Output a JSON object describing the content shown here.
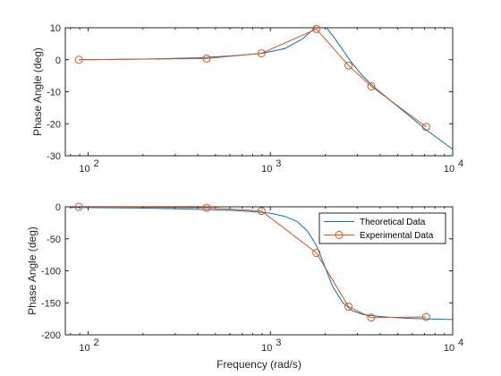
{
  "chart_data": [
    {
      "type": "line",
      "xscale": "log",
      "xlim": [
        75,
        10000
      ],
      "ylim": [
        -30,
        10
      ],
      "yticks": [
        10,
        0,
        -10,
        -20,
        -30
      ],
      "xticks": [
        {
          "value": 100,
          "base": "10",
          "exp": "2"
        },
        {
          "value": 1000,
          "base": "10",
          "exp": "3"
        },
        {
          "value": 10000,
          "base": "10",
          "exp": "4"
        }
      ],
      "xlabel": "",
      "ylabel": "Phase Angle (deg)",
      "series": [
        {
          "color": "#0072BD",
          "marker": "none",
          "x": [
            89,
            200,
            400,
            600,
            900,
            1200,
            1500,
            1800,
            2000,
            2200,
            2500,
            2800,
            3200,
            3700,
            4500,
            5500,
            7000,
            8500,
            10000
          ],
          "y": [
            0,
            0.2,
            0.6,
            1.2,
            2.0,
            3.5,
            6.5,
            10.5,
            10.5,
            7.5,
            3.0,
            -1.0,
            -5.0,
            -8.5,
            -12.5,
            -16.5,
            -21.5,
            -25.0,
            -28.0
          ]
        },
        {
          "color": "#D95319",
          "marker": "circle",
          "x": [
            89,
            447,
            894,
            1788,
            2683,
            3577,
            7154
          ],
          "y": [
            0,
            0.4,
            2.0,
            9.6,
            -1.8,
            -8.3,
            -21.0
          ]
        }
      ]
    },
    {
      "type": "line",
      "xscale": "log",
      "xlim": [
        75,
        10000
      ],
      "ylim": [
        -200,
        0
      ],
      "yticks": [
        0,
        -50,
        -100,
        -150,
        -200
      ],
      "xticks": [
        {
          "value": 100,
          "base": "10",
          "exp": "2"
        },
        {
          "value": 1000,
          "base": "10",
          "exp": "3"
        },
        {
          "value": 10000,
          "base": "10",
          "exp": "4"
        }
      ],
      "xlabel": "Frequency (rad/s)",
      "ylabel": "Phase Angle (deg)",
      "legend_position": "top-right",
      "series": [
        {
          "name": "Theoretical Data",
          "color": "#0072BD",
          "marker": "none",
          "x": [
            80,
            200,
            400,
            600,
            800,
            1000,
            1200,
            1400,
            1600,
            1800,
            2000,
            2200,
            2500,
            2800,
            3200,
            3700,
            4500,
            5500,
            7000,
            10000
          ],
          "y": [
            -1,
            -2,
            -4,
            -5.5,
            -7.5,
            -10,
            -15,
            -23,
            -38,
            -62,
            -95,
            -125,
            -150,
            -162,
            -168,
            -170.5,
            -172.5,
            -174,
            -175,
            -176
          ]
        },
        {
          "name": "Experimental Data",
          "color": "#D95319",
          "marker": "circle",
          "x": [
            89,
            447,
            894,
            1788,
            2683,
            3577,
            7154
          ],
          "y": [
            0,
            -1.5,
            -6.5,
            -72,
            -156,
            -173,
            -172
          ]
        }
      ]
    }
  ]
}
